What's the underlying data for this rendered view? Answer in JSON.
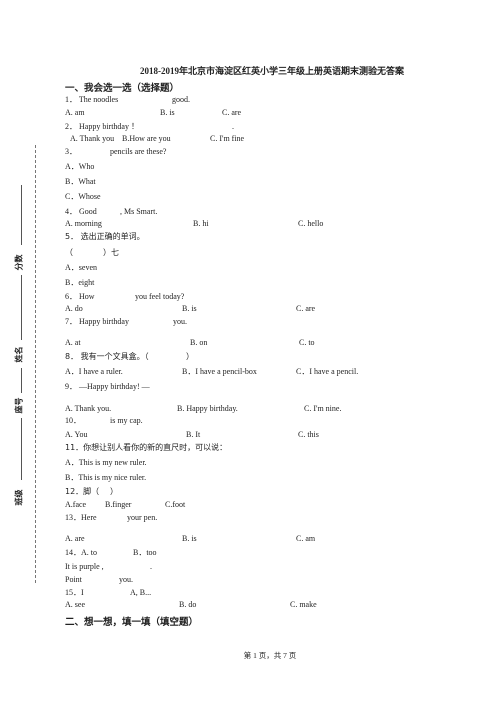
{
  "title": "2018-2019年北京市海淀区红英小学三年级上册英语期末测验无答案",
  "sections": [
    {
      "heading": "一、我会选一选（选择题）",
      "rows": [
        [
          "1． The noodles",
          "good."
        ],
        [
          "A. am",
          "B. is",
          "C. are"
        ],
        [
          "2． Happy birthday ！",
          "."
        ],
        [
          "A. Thank you",
          "B.How are you",
          "C. I'm fine"
        ],
        [
          "3．",
          "pencils are these?"
        ],
        [
          "A．Who"
        ],
        [
          "B．What"
        ],
        [
          "C．Whose"
        ],
        [
          "4． Good",
          ", Ms Smart."
        ],
        [
          "A. morning",
          "B. hi",
          "C. hello"
        ],
        [
          "5． 选出正确的单词。"
        ],
        [
          "（",
          "）七"
        ],
        [
          "A．seven"
        ],
        [
          "B．eight"
        ],
        [
          "6． How",
          "you feel today?"
        ],
        [
          "A. do",
          "B. is",
          "C. are"
        ],
        [
          "7． Happy birthday",
          "you."
        ],
        [
          "A. at",
          "B. on",
          "C. to"
        ],
        [
          "8． 我有一个文具盒。（",
          "）"
        ],
        [
          "A．I have a ruler.",
          "B．I have a pencil-box",
          "C．I have a pencil."
        ],
        [
          "9． —Happy birthday!  —"
        ],
        [
          "A. Thank you.",
          "B. Happy birthday.",
          "C. I'm nine."
        ],
        [
          "10．",
          "is my cap."
        ],
        [
          "A. You",
          "B. It",
          "C. this"
        ],
        [
          "11．你想让别人看你的新的直尺时，可以说："
        ],
        [
          "A．This is my new ruler."
        ],
        [
          "B．This is my nice ruler."
        ],
        [
          "12．脚（",
          "）"
        ],
        [
          "A.face",
          "B.finger",
          "C.foot"
        ],
        [
          "13．Here",
          "your pen."
        ],
        [
          "A. are",
          "B. is",
          "C. am"
        ],
        [
          "14．A. to",
          "B．too"
        ],
        [
          "It is purple ,",
          "."
        ],
        [
          "Point",
          "you."
        ],
        [
          "15．I",
          "A, B..."
        ],
        [
          "A. see",
          "B. do",
          "C. make"
        ]
      ]
    },
    {
      "heading": "二、想一想，填一填（填空题）"
    }
  ],
  "margin_labels": [
    "分数",
    "姓名",
    "座号",
    "班级"
  ],
  "footer": "第 1 页，共 7 页"
}
